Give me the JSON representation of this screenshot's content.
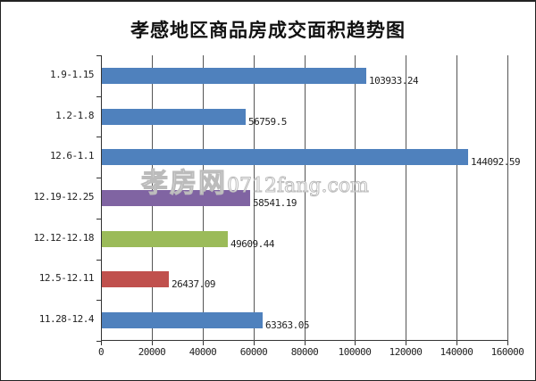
{
  "chart_data": {
    "type": "bar",
    "orientation": "horizontal",
    "title": "孝感地区商品房成交面积趋势图",
    "xlabel": "",
    "ylabel": "",
    "xlim": [
      0,
      160000
    ],
    "x_ticks": [
      "0",
      "20000",
      "40000",
      "60000",
      "80000",
      "100000",
      "120000",
      "140000",
      "160000"
    ],
    "grid": "vertical",
    "legend": "none",
    "categories": [
      "1.9-1.15",
      "1.2-1.8",
      "12.6-1.1",
      "12.19-12.25",
      "12.12-12.18",
      "12.5-12.11",
      "11.28-12.4"
    ],
    "values": [
      103933.24,
      56759.5,
      144092.59,
      58541.19,
      49609.44,
      26437.09,
      63363.05
    ],
    "value_labels": [
      "103933.24",
      "56759.5",
      "144092.59",
      "58541.19",
      "49609.44",
      "26437.09",
      "63363.05"
    ],
    "colors": [
      "#4F81BD",
      "#4F81BD",
      "#4F81BD",
      "#8064A2",
      "#9BBB59",
      "#C0504D",
      "#4F81BD"
    ]
  },
  "watermark": {
    "brand": "孝房网",
    "domain": "0712fang.com"
  }
}
